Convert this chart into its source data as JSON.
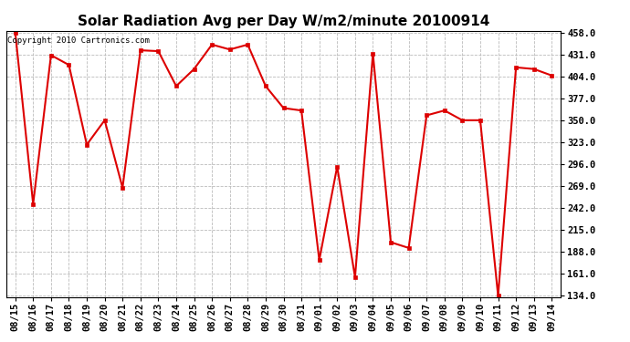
{
  "title": "Solar Radiation Avg per Day W/m2/minute 20100914",
  "copyright": "Copyright 2010 Cartronics.com",
  "dates": [
    "08/15",
    "08/16",
    "08/17",
    "08/18",
    "08/19",
    "08/20",
    "08/21",
    "08/22",
    "08/23",
    "08/24",
    "08/25",
    "08/26",
    "08/27",
    "08/28",
    "08/29",
    "08/30",
    "08/31",
    "09/01",
    "09/02",
    "09/03",
    "09/04",
    "09/05",
    "09/06",
    "09/07",
    "09/08",
    "09/09",
    "09/10",
    "09/11",
    "09/12",
    "09/13",
    "09/14"
  ],
  "values": [
    458.0,
    247.0,
    430.0,
    418.0,
    320.0,
    350.0,
    267.0,
    436.0,
    435.0,
    392.0,
    413.0,
    443.0,
    437.0,
    443.0,
    392.0,
    365.0,
    362.0,
    178.0,
    293.0,
    157.0,
    432.0,
    200.0,
    193.0,
    356.0,
    362.0,
    350.0,
    350.0,
    134.0,
    415.0,
    413.0,
    405.0
  ],
  "ylim_min": 134.0,
  "ylim_max": 458.0,
  "yticks": [
    134.0,
    161.0,
    188.0,
    215.0,
    242.0,
    269.0,
    296.0,
    323.0,
    350.0,
    377.0,
    404.0,
    431.0,
    458.0
  ],
  "line_color": "#dd0000",
  "marker_color": "#dd0000",
  "bg_color": "#ffffff",
  "grid_color": "#bbbbbb",
  "title_fontsize": 11,
  "tick_fontsize": 7.5,
  "copyright_fontsize": 6.5
}
